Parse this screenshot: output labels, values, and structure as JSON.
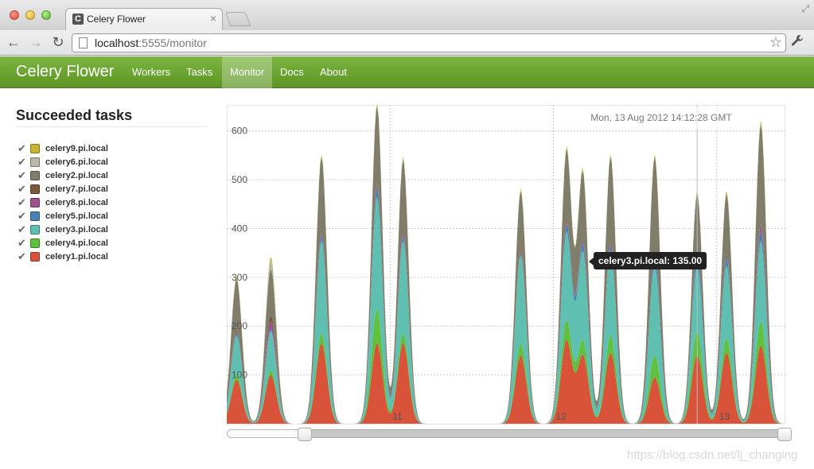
{
  "browser": {
    "tab_title": "Celery Flower",
    "tab_favicon": "C",
    "tab_close": "×",
    "url_host": "localhost",
    "url_rest": ":5555/monitor",
    "back_icon": "←",
    "forward_icon": "→",
    "reload_icon": "↻",
    "star_icon": "☆",
    "wrench_icon": "🔧"
  },
  "navbar": {
    "brand": "Celery Flower",
    "links": [
      "Workers",
      "Tasks",
      "Monitor",
      "Docs",
      "About"
    ],
    "active": "Monitor"
  },
  "sidebar": {
    "title": "Succeeded tasks",
    "check_glyph": "✔",
    "legend": [
      {
        "label": "celery9.pi.local",
        "color": "#c9b431"
      },
      {
        "label": "celery6.pi.local",
        "color": "#b9b9a4"
      },
      {
        "label": "celery2.pi.local",
        "color": "#807d6a"
      },
      {
        "label": "celery7.pi.local",
        "color": "#7a5a3a"
      },
      {
        "label": "celery8.pi.local",
        "color": "#a04f8f"
      },
      {
        "label": "celery5.pi.local",
        "color": "#4a7fb8"
      },
      {
        "label": "celery3.pi.local",
        "color": "#5fbfb0"
      },
      {
        "label": "celery4.pi.local",
        "color": "#61c13e"
      },
      {
        "label": "celery1.pi.local",
        "color": "#d9533a"
      }
    ]
  },
  "chart_data": {
    "type": "area",
    "stacked": true,
    "ylim": [
      0,
      650
    ],
    "y_ticks": [
      100,
      200,
      300,
      400,
      500,
      600
    ],
    "x_ticks": [
      "11",
      "12",
      "13"
    ],
    "x_range": [
      10,
      13.42
    ],
    "hover_date": "Mon, 13 Aug 2012 14:12:28 GMT",
    "tooltip": "celery3.pi.local: 135.00",
    "tooltip_x": 12.88,
    "tooltip_y": 330,
    "grid": true,
    "series": [
      {
        "name": "celery1.pi.local",
        "color": "#d9533a",
        "peaks": [
          [
            10.06,
            90
          ],
          [
            10.27,
            100
          ],
          [
            10.58,
            165
          ],
          [
            10.92,
            165
          ],
          [
            11.08,
            165
          ],
          [
            11.8,
            140
          ],
          [
            12.08,
            170
          ],
          [
            12.18,
            140
          ],
          [
            12.35,
            145
          ],
          [
            12.62,
            95
          ],
          [
            12.88,
            140
          ],
          [
            13.06,
            145
          ],
          [
            13.27,
            160
          ]
        ]
      },
      {
        "name": "celery4.pi.local",
        "color": "#61c13e",
        "peaks": [
          [
            10.06,
            10
          ],
          [
            10.27,
            10
          ],
          [
            10.58,
            20
          ],
          [
            10.92,
            70
          ],
          [
            11.08,
            20
          ],
          [
            11.8,
            25
          ],
          [
            12.08,
            40
          ],
          [
            12.18,
            30
          ],
          [
            12.35,
            35
          ],
          [
            12.62,
            45
          ],
          [
            12.88,
            50
          ],
          [
            13.06,
            30
          ],
          [
            13.27,
            50
          ]
        ]
      },
      {
        "name": "celery3.pi.local",
        "color": "#5fbfb0",
        "peaks": [
          [
            10.06,
            80
          ],
          [
            10.27,
            80
          ],
          [
            10.58,
            190
          ],
          [
            10.92,
            230
          ],
          [
            11.08,
            190
          ],
          [
            11.8,
            180
          ],
          [
            12.08,
            180
          ],
          [
            12.18,
            180
          ],
          [
            12.35,
            175
          ],
          [
            12.62,
            185
          ],
          [
            12.88,
            135
          ],
          [
            13.06,
            150
          ],
          [
            13.27,
            165
          ]
        ]
      },
      {
        "name": "celery5.pi.local",
        "color": "#4a7fb8",
        "peaks": [
          [
            10.06,
            5
          ],
          [
            10.27,
            5
          ],
          [
            10.58,
            10
          ],
          [
            10.92,
            20
          ],
          [
            11.08,
            10
          ],
          [
            11.8,
            5
          ],
          [
            12.08,
            15
          ],
          [
            12.18,
            15
          ],
          [
            12.35,
            10
          ],
          [
            12.62,
            20
          ],
          [
            12.88,
            25
          ],
          [
            13.06,
            15
          ],
          [
            13.27,
            20
          ]
        ]
      },
      {
        "name": "celery8.pi.local",
        "color": "#a04f8f",
        "peaks": [
          [
            10.06,
            3
          ],
          [
            10.27,
            15
          ],
          [
            10.58,
            3
          ],
          [
            10.92,
            3
          ],
          [
            11.08,
            3
          ],
          [
            11.8,
            3
          ],
          [
            12.08,
            3
          ],
          [
            12.18,
            3
          ],
          [
            12.35,
            3
          ],
          [
            12.62,
            3
          ],
          [
            12.88,
            3
          ],
          [
            13.06,
            3
          ],
          [
            13.27,
            10
          ]
        ]
      },
      {
        "name": "celery7.pi.local",
        "color": "#7a5a3a",
        "peaks": [
          [
            10.06,
            3
          ],
          [
            10.27,
            12
          ],
          [
            10.58,
            3
          ],
          [
            10.92,
            3
          ],
          [
            11.08,
            3
          ],
          [
            11.8,
            3
          ],
          [
            12.08,
            3
          ],
          [
            12.18,
            3
          ],
          [
            12.35,
            3
          ],
          [
            12.62,
            3
          ],
          [
            12.88,
            3
          ],
          [
            13.06,
            3
          ],
          [
            13.27,
            3
          ]
        ]
      },
      {
        "name": "celery2.pi.local",
        "color": "#807d6a",
        "peaks": [
          [
            10.06,
            105
          ],
          [
            10.27,
            95
          ],
          [
            10.58,
            155
          ],
          [
            10.92,
            160
          ],
          [
            11.08,
            150
          ],
          [
            11.8,
            120
          ],
          [
            12.08,
            145
          ],
          [
            12.18,
            140
          ],
          [
            12.35,
            175
          ],
          [
            12.62,
            195
          ],
          [
            12.88,
            115
          ],
          [
            13.06,
            125
          ],
          [
            13.27,
            205
          ]
        ]
      },
      {
        "name": "celery6.pi.local",
        "color": "#b9b9a4",
        "peaks": [
          [
            10.06,
            3
          ],
          [
            10.27,
            20
          ],
          [
            10.58,
            3
          ],
          [
            10.92,
            3
          ],
          [
            11.08,
            3
          ],
          [
            11.8,
            3
          ],
          [
            12.08,
            3
          ],
          [
            12.18,
            3
          ],
          [
            12.35,
            3
          ],
          [
            12.62,
            3
          ],
          [
            12.88,
            3
          ],
          [
            13.06,
            3
          ],
          [
            13.27,
            3
          ]
        ]
      },
      {
        "name": "celery9.pi.local",
        "color": "#c9b431",
        "peaks": [
          [
            10.06,
            3
          ],
          [
            10.27,
            5
          ],
          [
            10.58,
            3
          ],
          [
            10.92,
            3
          ],
          [
            11.08,
            3
          ],
          [
            11.8,
            3
          ],
          [
            12.08,
            3
          ],
          [
            12.18,
            3
          ],
          [
            12.35,
            3
          ],
          [
            12.62,
            3
          ],
          [
            12.88,
            3
          ],
          [
            13.06,
            3
          ],
          [
            13.27,
            5
          ]
        ]
      }
    ]
  },
  "range_slider": {
    "start": 0.13,
    "end": 1.0
  },
  "watermark": "https://blog.csdn.net/lj_changing"
}
